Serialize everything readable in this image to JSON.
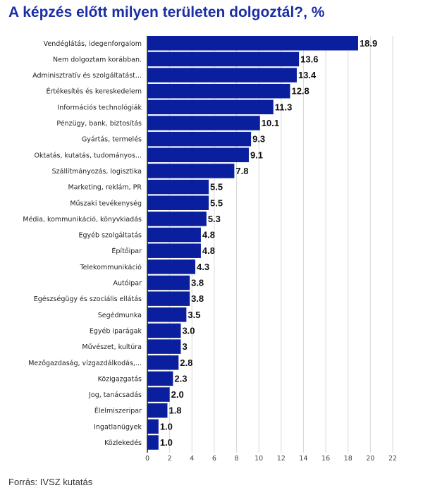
{
  "chart_data": {
    "type": "bar",
    "orientation": "horizontal",
    "title": "A képzés előtt milyen területen dolgoztál?, %",
    "source": "Forrás: IVSZ kutatás",
    "categories": [
      "Vendéglátás, idegenforgalom",
      "Nem dolgoztam korábban.",
      "Adminisztratív és szolgáltatást...",
      "Értékesítés és kereskedelem",
      "Információs technológiák",
      "Pénzügy, bank, biztosítás",
      "Gyártás, termelés",
      "Oktatás, kutatás, tudományos...",
      "Szállítmányozás, logisztika",
      "Marketing, reklám, PR",
      "Műszaki tevékenység",
      "Média, kommunikáció, könyvkiadás",
      "Egyéb szolgáltatás",
      "Építőipar",
      "Telekommunikáció",
      "Autóipar",
      "Egészségügy és szociális ellátás",
      "Segédmunka",
      "Egyéb iparágak",
      "Művészet, kultúra",
      "Mezőgazdaság, vízgazdálkodás,...",
      "Közigazgatás",
      "Jog, tanácsadás",
      "Élelmiszeripar",
      "Ingatlanügyek",
      "Közlekedés"
    ],
    "values": [
      18.9,
      13.6,
      13.4,
      12.8,
      11.3,
      10.1,
      9.3,
      9.1,
      7.8,
      5.5,
      5.5,
      5.3,
      4.8,
      4.8,
      4.3,
      3.8,
      3.8,
      3.5,
      3.0,
      3,
      2.8,
      2.3,
      2.0,
      1.8,
      1.0,
      1.0
    ],
    "value_labels": [
      "18.9",
      "13.6",
      "13.4",
      "12.8",
      "11.3",
      "10.1",
      "9.3",
      "9.1",
      "7.8",
      "5.5",
      "5.5",
      "5.3",
      "4.8",
      "4.8",
      "4.3",
      "3.8",
      "3.8",
      "3.5",
      "3.0",
      "3",
      "2.8",
      "2.3",
      "2.0",
      "1.8",
      "1.0",
      "1.0"
    ],
    "xlim": [
      0,
      22
    ],
    "xticks": [
      0,
      2,
      4,
      6,
      8,
      10,
      12,
      14,
      16,
      18,
      20,
      22
    ],
    "grid": true,
    "legend": "none",
    "colors": {
      "bar": "#0a1f9e",
      "title": "#1a2fa5",
      "grid": "#d9d9d9",
      "axis": "#222222"
    }
  }
}
